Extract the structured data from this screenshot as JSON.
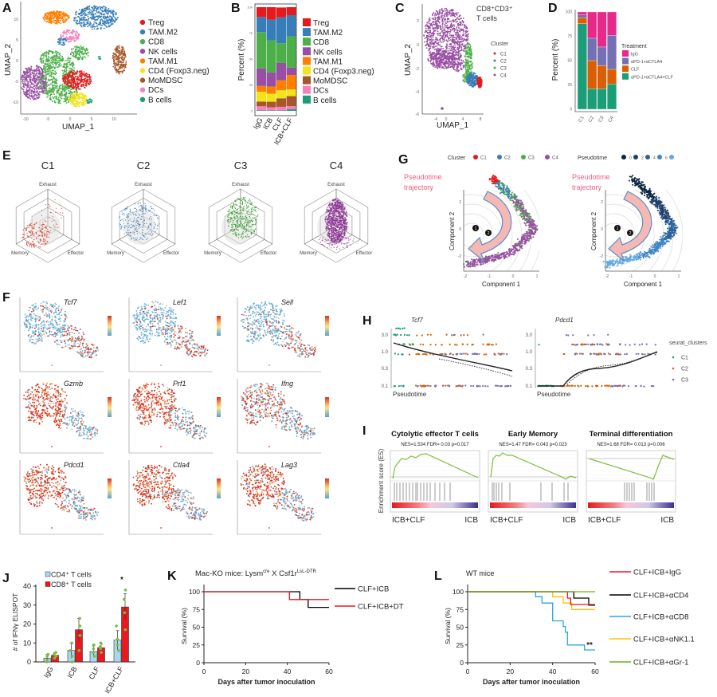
{
  "panel_labels": {
    "A": "A",
    "B": "B",
    "C": "C",
    "D": "D",
    "E": "E",
    "F": "F",
    "G": "G",
    "H": "H",
    "I": "I",
    "J": "J",
    "K": "K",
    "L": "L"
  },
  "chart_data": [
    {
      "id": "A",
      "type": "scatter",
      "xlabel": "UMAP_1",
      "ylabel": "UMAP_2",
      "xticks": [
        "-10",
        "-5",
        "0",
        "5",
        "10"
      ],
      "yticks": [
        "10",
        "5",
        "0",
        "-5",
        "-10"
      ],
      "legend": [
        {
          "name": "Treg",
          "color": "#e41a1c"
        },
        {
          "name": "TAM.M2",
          "color": "#377eb8"
        },
        {
          "name": "CD8",
          "color": "#4daf4a"
        },
        {
          "name": "NK cells",
          "color": "#984ea3"
        },
        {
          "name": "TAM.M1",
          "color": "#ff7f00"
        },
        {
          "name": "CD4 (Foxp3.neg)",
          "color": "#f2e31b"
        },
        {
          "name": "MoMDSC",
          "color": "#a65628"
        },
        {
          "name": "DCs",
          "color": "#f781bf"
        },
        {
          "name": "B cells",
          "color": "#1b9e77"
        }
      ]
    },
    {
      "id": "B",
      "type": "bar",
      "stacked": true,
      "categories": [
        "IgG",
        "ICB",
        "CLF",
        "ICB+CLF"
      ],
      "ylabel": "Percent (%)",
      "ylim": [
        0,
        100
      ],
      "yticks": [
        "100",
        "75",
        "50",
        "25",
        "0"
      ],
      "series": [
        {
          "name": "Treg",
          "color": "#e41a1c",
          "values": [
            9.5,
            12,
            9.5,
            7.7
          ]
        },
        {
          "name": "TAM.M2",
          "color": "#377eb8",
          "values": [
            14.5,
            20,
            25,
            20.5
          ]
        },
        {
          "name": "CD8",
          "color": "#4daf4a",
          "values": [
            35,
            31,
            19,
            30
          ]
        },
        {
          "name": "NK cells",
          "color": "#984ea3",
          "values": [
            17,
            13.5,
            16.7,
            7.2
          ]
        },
        {
          "name": "TAM.M1",
          "color": "#ff7f00",
          "values": [
            5.5,
            7,
            9.7,
            14
          ]
        },
        {
          "name": "CD4 (Foxp3.neg)",
          "color": "#f2e31b",
          "values": [
            9.5,
            7.7,
            7.7,
            6.4
          ]
        },
        {
          "name": "MoMDSC",
          "color": "#a65628",
          "values": [
            4.6,
            5.4,
            8.2,
            9.7
          ]
        },
        {
          "name": "DCs",
          "color": "#f781bf",
          "values": [
            4,
            3,
            3.4,
            3
          ]
        },
        {
          "name": "B cells",
          "color": "#1b9e77",
          "values": [
            0.4,
            0.4,
            0.5,
            1.5
          ]
        }
      ]
    },
    {
      "id": "C",
      "type": "scatter",
      "title": "CD8⁺CD3⁺",
      "subtitle": "T cells",
      "xlabel": "UMAP_1",
      "ylabel": "UMAP_2",
      "xticks": [
        "-4",
        "0",
        "4",
        "8"
      ],
      "yticks": [
        "2",
        "0",
        "-2",
        "-4",
        "-6"
      ],
      "legend_title": "Cluster",
      "legend": [
        {
          "name": "C1",
          "color": "#e41a1c"
        },
        {
          "name": "C2",
          "color": "#377eb8"
        },
        {
          "name": "C3",
          "color": "#4daf4a"
        },
        {
          "name": "C4",
          "color": "#984ea3"
        }
      ]
    },
    {
      "id": "D",
      "type": "bar",
      "stacked": true,
      "categories": [
        "C1",
        "C2",
        "C3",
        "C4"
      ],
      "ylabel": "Percent (%)",
      "ylim": [
        0,
        100
      ],
      "yticks": [
        "100",
        "75",
        "50",
        "25",
        "0"
      ],
      "legend_title": "Treatment",
      "series": [
        {
          "name": "IgG",
          "color": "#e7298a",
          "values": [
            3,
            27,
            36,
            24
          ]
        },
        {
          "name": "αPD-1+αCTLA4",
          "color": "#7570b3",
          "values": [
            3,
            23,
            19,
            35
          ]
        },
        {
          "name": "CLF",
          "color": "#d95f02",
          "values": [
            6,
            29,
            24,
            15
          ]
        },
        {
          "name": "αPD-1+αCTLA4+CLF",
          "color": "#1b9e77",
          "values": [
            88,
            21,
            21,
            26
          ]
        }
      ]
    },
    {
      "id": "E",
      "type": "radar",
      "axes": [
        "Exhaust",
        "Memory",
        "Effector"
      ],
      "plots": [
        {
          "title": "C1",
          "color": "#e34a33"
        },
        {
          "title": "C2",
          "color": "#3a7dc0"
        },
        {
          "title": "C3",
          "color": "#33a02c"
        },
        {
          "title": "C4",
          "color": "#8e3b96"
        }
      ]
    },
    {
      "id": "F",
      "type": "scatter",
      "genes": [
        "Tcf7",
        "Lef1",
        "Sell",
        "Gzmb",
        "Prf1",
        "Ifng",
        "Pdcd1",
        "Ctla4",
        "Lag3"
      ],
      "high_expression": [
        false,
        false,
        false,
        true,
        true,
        true,
        true,
        true,
        true
      ]
    },
    {
      "id": "G",
      "type": "scatter",
      "legend_title": "Cluster",
      "legend": [
        {
          "name": "C1",
          "color": "#e41a1c"
        },
        {
          "name": "C2",
          "color": "#377eb8"
        },
        {
          "name": "C3",
          "color": "#4daf4a"
        },
        {
          "name": "C4",
          "color": "#984ea3"
        }
      ],
      "pseudotime_title": "Pseudotime",
      "pseudotime_ticks": [
        "0",
        "2",
        "4",
        "6"
      ],
      "pseudotime_colors": [
        "#0b2545",
        "#1d3f6e",
        "#2a6199",
        "#3d85c6",
        "#63a9e4"
      ],
      "annotation": [
        "Pseudotime",
        "trajectory"
      ],
      "branch_points": [
        "1",
        "2"
      ],
      "xlabel": "Component 1",
      "ylabel": "Component 2",
      "xticks": [
        "-2",
        "-1",
        "0",
        "1"
      ],
      "yticks": [
        "2",
        "0",
        "-2"
      ]
    },
    {
      "id": "H",
      "type": "scatter",
      "plots": [
        {
          "gene": "Tcf7"
        },
        {
          "gene": "Pdcd1"
        }
      ],
      "xlabel": "Pseudotime",
      "yticks": [
        "3.0",
        "1.0",
        "0.3",
        "0.1"
      ],
      "legend_title": "seurat_clusters",
      "legend": [
        {
          "name": "C1",
          "color": "#1b9e77"
        },
        {
          "name": "C2",
          "color": "#d95f02"
        },
        {
          "name": "C3",
          "color": "#7570b3"
        }
      ]
    },
    {
      "id": "I",
      "type": "line",
      "ylabel": "Enrichment score (ES)",
      "plots": [
        {
          "title": "Cytolytic effector T cells",
          "stats": "NES=1.534 FDR= 0.03 p=0.017",
          "left": "ICB+CLF",
          "right": "ICB"
        },
        {
          "title": "Early Memory",
          "stats": "NES=1.47 FDR= 0.043 p=0.023",
          "left": "ICB+CLF",
          "right": "ICB"
        },
        {
          "title": "Terminal differentiation",
          "stats": "NES=1.68 FDR= 0.013 p=0.006",
          "left": "ICB+CLF",
          "right": "ICB"
        }
      ]
    },
    {
      "id": "J",
      "type": "bar",
      "categories": [
        "IgG",
        "ICB",
        "CLF",
        "ICB+CLF"
      ],
      "ylabel": "# of IFNγ ELISPOT",
      "ylim": [
        0,
        40
      ],
      "yticks": [
        "40",
        "30",
        "20",
        "10",
        "0"
      ],
      "series": [
        {
          "name": "CD4⁺ T cells",
          "color": "#a6d8f0",
          "values": [
            2,
            6,
            5.5,
            11.5
          ],
          "errors": [
            2,
            4,
            3,
            5
          ],
          "points": [
            [
              0,
              1,
              3,
              4
            ],
            [
              0,
              3,
              6,
              10
            ],
            [
              3,
              5,
              7,
              9
            ],
            [
              6,
              9,
              12,
              19
            ]
          ]
        },
        {
          "name": "CD8⁺ T cells",
          "color": "#e8191f",
          "values": [
            3.5,
            17,
            7.5,
            29
          ],
          "errors": [
            1.5,
            6,
            2,
            7
          ],
          "points": [
            [
              2,
              3,
              4,
              5
            ],
            [
              6,
              14,
              19,
              23
            ],
            [
              5,
              7,
              8,
              10
            ],
            [
              17,
              26,
              33,
              38
            ]
          ]
        }
      ],
      "annotation": "*"
    },
    {
      "id": "K",
      "type": "line",
      "title": "Mac-KO mice: Lysm",
      "title_sup1": "cre",
      "title_mid": " X Csf1r",
      "title_sup2": "LsL-DTR",
      "xlabel": "Days after tumor inoculation",
      "ylabel": "Survival (%)",
      "xlim": [
        0,
        60
      ],
      "ylim": [
        0,
        100
      ],
      "xticks": [
        "0",
        "20",
        "40",
        "60"
      ],
      "yticks": [
        "100",
        "75",
        "50",
        "25",
        "0"
      ],
      "series": [
        {
          "name": "CLF+ICB",
          "color": "#000000",
          "steps": [
            [
              0,
              100
            ],
            [
              46,
              89
            ],
            [
              50,
              78
            ],
            [
              60,
              78
            ]
          ]
        },
        {
          "name": "CLF+ICB+DT",
          "color": "#e8191f",
          "steps": [
            [
              0,
              100
            ],
            [
              41,
              89
            ],
            [
              60,
              89
            ]
          ]
        }
      ]
    },
    {
      "id": "L",
      "type": "line",
      "title": "WT mice",
      "xlabel": "Days after tumor inoculation",
      "ylabel": "Survival (%)",
      "xlim": [
        0,
        60
      ],
      "ylim": [
        0,
        100
      ],
      "xticks": [
        "0",
        "20",
        "40",
        "60"
      ],
      "yticks": [
        "100",
        "75",
        "50",
        "25",
        "0"
      ],
      "series": [
        {
          "name": "CLF+ICB+IgG",
          "color": "#e8191f",
          "steps": [
            [
              0,
              100
            ],
            [
              47,
              91
            ],
            [
              48.5,
              82
            ],
            [
              60,
              82
            ]
          ]
        },
        {
          "name": "CLF+ICB+αCD4",
          "color": "#000000",
          "steps": [
            [
              0,
              100
            ],
            [
              50,
              91
            ],
            [
              57,
              81
            ],
            [
              60,
              81
            ]
          ]
        },
        {
          "name": "CLF+ICB+αCD8",
          "color": "#2aa6e0",
          "steps": [
            [
              0,
              100
            ],
            [
              32,
              93
            ],
            [
              35,
              84
            ],
            [
              40,
              59
            ],
            [
              45,
              51
            ],
            [
              46,
              43
            ],
            [
              47,
              25
            ],
            [
              55,
              18
            ],
            [
              60,
              18
            ]
          ]
        },
        {
          "name": "CLF+ICB+αNK1.1",
          "color": "#ffc000",
          "steps": [
            [
              0,
              100
            ],
            [
              40,
              93
            ],
            [
              45,
              84
            ],
            [
              49,
              75
            ],
            [
              60,
              75
            ]
          ]
        },
        {
          "name": "CLF+ICB+αGr-1",
          "color": "#6ab023",
          "steps": [
            [
              0,
              100
            ],
            [
              60,
              100
            ]
          ]
        }
      ],
      "annotation": "**"
    }
  ]
}
